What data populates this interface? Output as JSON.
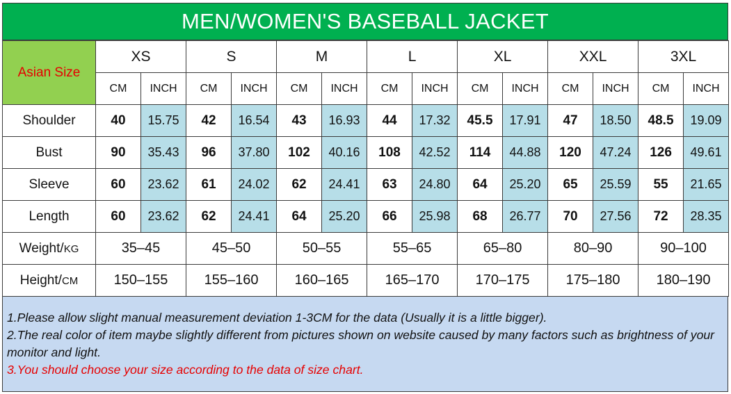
{
  "title": "MEN/WOMEN'S BASEBALL JACKET",
  "asian_size_label": "Asian Size",
  "sizes": [
    "XS",
    "S",
    "M",
    "L",
    "XL",
    "XXL",
    "3XL"
  ],
  "unit_labels": {
    "cm": "CM",
    "inch": "INCH"
  },
  "measurements": [
    {
      "label": "Shoulder",
      "values": [
        [
          "40",
          "15.75"
        ],
        [
          "42",
          "16.54"
        ],
        [
          "43",
          "16.93"
        ],
        [
          "44",
          "17.32"
        ],
        [
          "45.5",
          "17.91"
        ],
        [
          "47",
          "18.50"
        ],
        [
          "48.5",
          "19.09"
        ]
      ]
    },
    {
      "label": "Bust",
      "values": [
        [
          "90",
          "35.43"
        ],
        [
          "96",
          "37.80"
        ],
        [
          "102",
          "40.16"
        ],
        [
          "108",
          "42.52"
        ],
        [
          "114",
          "44.88"
        ],
        [
          "120",
          "47.24"
        ],
        [
          "126",
          "49.61"
        ]
      ]
    },
    {
      "label": "Sleeve",
      "values": [
        [
          "60",
          "23.62"
        ],
        [
          "61",
          "24.02"
        ],
        [
          "62",
          "24.41"
        ],
        [
          "63",
          "24.80"
        ],
        [
          "64",
          "25.20"
        ],
        [
          "65",
          "25.59"
        ],
        [
          "55",
          "21.65"
        ]
      ]
    },
    {
      "label": "Length",
      "values": [
        [
          "60",
          "23.62"
        ],
        [
          "62",
          "24.41"
        ],
        [
          "64",
          "25.20"
        ],
        [
          "66",
          "25.98"
        ],
        [
          "68",
          "26.77"
        ],
        [
          "70",
          "27.56"
        ],
        [
          "72",
          "28.35"
        ]
      ]
    }
  ],
  "ranges": [
    {
      "label": "Weight/",
      "unit": "KG",
      "values": [
        "35–45",
        "45–50",
        "50–55",
        "55–65",
        "65–80",
        "80–90",
        "90–100"
      ]
    },
    {
      "label": "Height/",
      "unit": "CM",
      "values": [
        "150–155",
        "155–160",
        "160–165",
        "165–170",
        "170–175",
        "175–180",
        "180–190"
      ]
    }
  ],
  "notes": [
    "1.Please allow slight manual measurement deviation 1-3CM for the data (Usually it is a little bigger).",
    "2.The real color of item maybe slightly different from pictures shown on website caused by many  factors such as brightness of your monitor and light.",
    "3.You should choose your size according to the data of size chart."
  ],
  "colors": {
    "title_bg": "#00b050",
    "asian_bg": "#92d050",
    "inch_bg": "#b7dee8",
    "notes_bg": "#c6d9f1",
    "red_text": "#e60000"
  }
}
